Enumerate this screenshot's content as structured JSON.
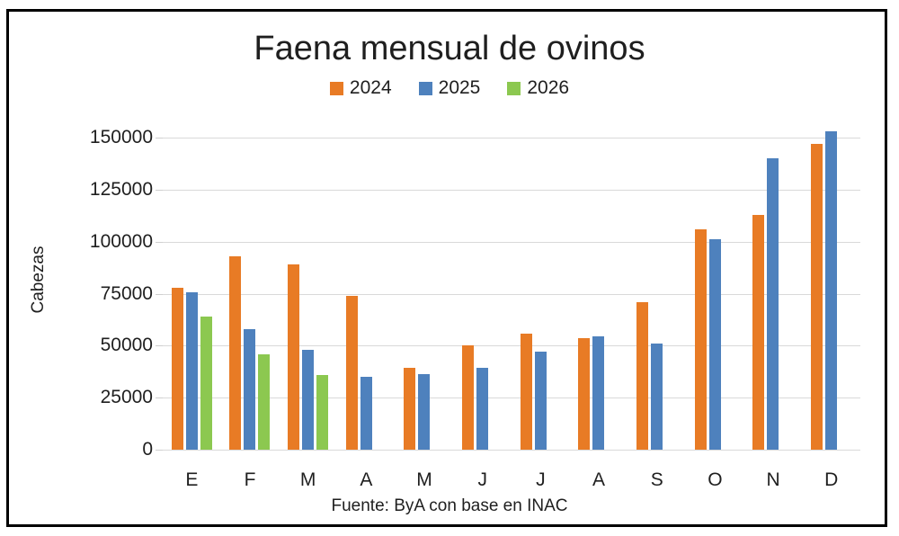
{
  "title": "Faena mensual de ovinos",
  "y_axis_title": "Cabezas",
  "source_note": "Fuente: ByA con base en INAC",
  "colors": {
    "series_2024": "#e87b25",
    "series_2025": "#4e81bd",
    "series_2026": "#8cc850",
    "gridline": "#d9d9d9",
    "frame_border": "#000000",
    "text": "#1f1f1f"
  },
  "chart_data": {
    "type": "bar",
    "title": "Faena mensual de ovinos",
    "ylabel": "Cabezas",
    "xlabel": "Fuente: ByA con base en INAC",
    "categories": [
      "E",
      "F",
      "M",
      "A",
      "M",
      "J",
      "J",
      "A",
      "S",
      "O",
      "N",
      "D"
    ],
    "series": [
      {
        "name": "2024",
        "color": "#e87b25",
        "values": [
          78000,
          93000,
          89000,
          74000,
          39500,
          50000,
          56000,
          53500,
          71000,
          106000,
          113000,
          147000
        ]
      },
      {
        "name": "2025",
        "color": "#4e81bd",
        "values": [
          75500,
          58000,
          48000,
          35000,
          36500,
          39500,
          47000,
          54500,
          51000,
          101000,
          140000,
          153000
        ]
      },
      {
        "name": "2026",
        "color": "#8cc850",
        "values": [
          64000,
          46000,
          36000,
          null,
          null,
          null,
          null,
          null,
          null,
          null,
          null,
          null
        ]
      }
    ],
    "ylim": [
      0,
      150000
    ],
    "yticks": [
      0,
      25000,
      50000,
      75000,
      100000,
      125000,
      150000
    ],
    "grid": true,
    "legend_position": "top"
  }
}
